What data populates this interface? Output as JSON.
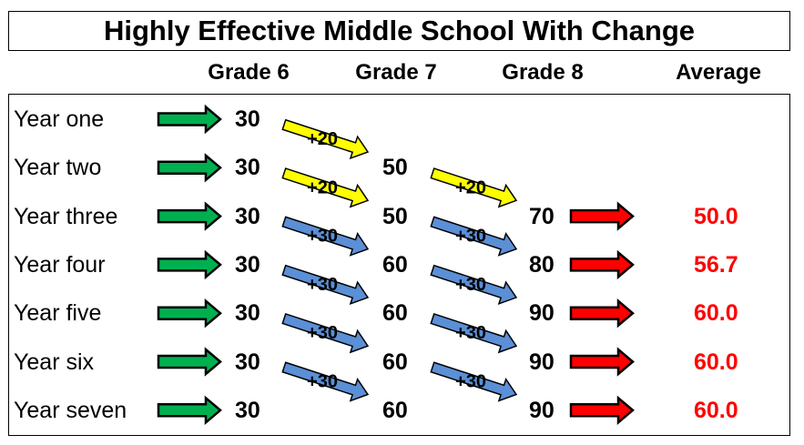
{
  "title": "Highly Effective Middle School With Change",
  "headers": {
    "grade6": "Grade 6",
    "grade7": "Grade 7",
    "grade8": "Grade 8",
    "average": "Average"
  },
  "rows": [
    {
      "label": "Year one",
      "grade6": "30",
      "grade7": "",
      "grade8": "",
      "average": "",
      "change67": "+20",
      "change78": ""
    },
    {
      "label": "Year two",
      "grade6": "30",
      "grade7": "50",
      "grade8": "",
      "average": "",
      "change67": "+20",
      "change78": "+20"
    },
    {
      "label": "Year three",
      "grade6": "30",
      "grade7": "50",
      "grade8": "70",
      "average": "50.0",
      "change67": "+30",
      "change78": "+30"
    },
    {
      "label": "Year four",
      "grade6": "30",
      "grade7": "60",
      "grade8": "80",
      "average": "56.7",
      "change67": "+30",
      "change78": "+30"
    },
    {
      "label": "Year five",
      "grade6": "30",
      "grade7": "60",
      "grade8": "90",
      "average": "60.0",
      "change67": "+30",
      "change78": "+30"
    },
    {
      "label": "Year six",
      "grade6": "30",
      "grade7": "60",
      "grade8": "90",
      "average": "60.0",
      "change67": "+30",
      "change78": "+30"
    },
    {
      "label": "Year seven",
      "grade6": "30",
      "grade7": "60",
      "grade8": "90",
      "average": "60.0",
      "change67": "",
      "change78": ""
    }
  ],
  "colors": {
    "green_arrow": "#00b050",
    "red_arrow": "#ff0000",
    "yellow_arrow": "#ffff00",
    "blue_arrow": "#5b8fd6",
    "average_text": "#ff0000"
  }
}
